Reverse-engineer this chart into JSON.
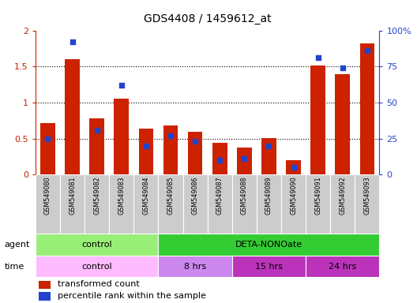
{
  "title": "GDS4408 / 1459612_at",
  "samples": [
    "GSM549080",
    "GSM549081",
    "GSM549082",
    "GSM549083",
    "GSM549084",
    "GSM549085",
    "GSM549086",
    "GSM549087",
    "GSM549088",
    "GSM549089",
    "GSM549090",
    "GSM549091",
    "GSM549092",
    "GSM549093"
  ],
  "red_values": [
    0.72,
    1.6,
    0.78,
    1.05,
    0.64,
    0.68,
    0.59,
    0.44,
    0.38,
    0.51,
    0.2,
    1.51,
    1.4,
    1.82
  ],
  "blue_pct": [
    25,
    92,
    31,
    62,
    20,
    27,
    23,
    10,
    11,
    20,
    5,
    81,
    74,
    86
  ],
  "ylim_left": [
    0,
    2
  ],
  "ylim_right": [
    0,
    100
  ],
  "yticks_left": [
    0,
    0.5,
    1.0,
    1.5,
    2.0
  ],
  "ytick_labels_left": [
    "0",
    "0.5",
    "1",
    "1.5",
    "2"
  ],
  "yticks_right": [
    0,
    25,
    50,
    75,
    100
  ],
  "ytick_labels_right": [
    "0",
    "25",
    "50",
    "75",
    "100%"
  ],
  "red_color": "#cc2200",
  "blue_color": "#2244cc",
  "bar_width": 0.6,
  "tick_bg": "#cccccc",
  "agent_spans": [
    {
      "label": "control",
      "start": 0,
      "end": 5,
      "color": "#99ee77"
    },
    {
      "label": "DETA-NONOate",
      "start": 5,
      "end": 14,
      "color": "#33cc33"
    }
  ],
  "time_spans": [
    {
      "label": "control",
      "start": 0,
      "end": 5,
      "color": "#ffbbff"
    },
    {
      "label": "8 hrs",
      "start": 5,
      "end": 8,
      "color": "#cc88ee"
    },
    {
      "label": "15 hrs",
      "start": 8,
      "end": 11,
      "color": "#bb33bb"
    },
    {
      "label": "24 hrs",
      "start": 11,
      "end": 14,
      "color": "#bb33bb"
    }
  ],
  "legend_red": "transformed count",
  "legend_blue": "percentile rank within the sample"
}
